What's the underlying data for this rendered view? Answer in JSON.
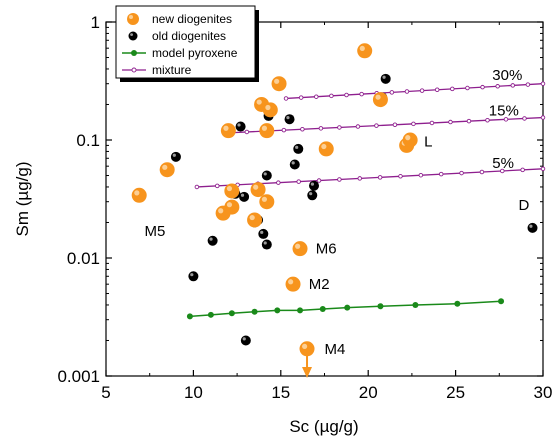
{
  "chart_data": {
    "type": "scatter",
    "title": "",
    "xlabel": "Sc (µg/g)",
    "ylabel": "Sm (µg/g)",
    "xlim": [
      5,
      30
    ],
    "ylim": [
      0.001,
      1
    ],
    "yscale": "log",
    "grid": false,
    "legend_position": "top-left",
    "x_ticks": [
      5,
      10,
      15,
      20,
      25,
      30
    ],
    "x_tick_labels": [
      "5",
      "10",
      "15",
      "20",
      "25",
      "30"
    ],
    "y_ticks": [
      0.001,
      0.01,
      0.1,
      1
    ],
    "y_tick_labels": [
      "0.001",
      "0.01",
      "0.1",
      "1"
    ],
    "colors": {
      "new": "#f7941d",
      "old": "#000000",
      "model": "#1a8a1a",
      "mixture": "#8e1f8e"
    },
    "series": [
      {
        "name": "new diogenites",
        "marker": "circle-orange",
        "points": [
          [
            6.9,
            0.034
          ],
          [
            8.5,
            0.056
          ],
          [
            11.7,
            0.024
          ],
          [
            12.0,
            0.12
          ],
          [
            12.2,
            0.027
          ],
          [
            12.2,
            0.037
          ],
          [
            13.5,
            0.021
          ],
          [
            13.7,
            0.038
          ],
          [
            13.9,
            0.2
          ],
          [
            14.2,
            0.03
          ],
          [
            14.2,
            0.12
          ],
          [
            14.4,
            0.18
          ],
          [
            14.9,
            0.3
          ],
          [
            16.1,
            0.012
          ],
          [
            17.6,
            0.084
          ],
          [
            19.8,
            0.57
          ],
          [
            20.7,
            0.22
          ],
          [
            22.2,
            0.09
          ],
          [
            22.4,
            0.1
          ],
          [
            15.7,
            0.006
          ],
          [
            16.5,
            0.0017
          ]
        ]
      },
      {
        "name": "old diogenites",
        "marker": "circle-black",
        "points": [
          [
            9.0,
            0.072
          ],
          [
            10.0,
            0.007
          ],
          [
            11.1,
            0.014
          ],
          [
            12.4,
            0.035
          ],
          [
            12.7,
            0.13
          ],
          [
            12.9,
            0.033
          ],
          [
            13.0,
            0.002
          ],
          [
            13.5,
            0.02
          ],
          [
            13.7,
            0.021
          ],
          [
            14.0,
            0.016
          ],
          [
            14.2,
            0.013
          ],
          [
            14.2,
            0.05
          ],
          [
            14.3,
            0.16
          ],
          [
            15.5,
            0.15
          ],
          [
            15.8,
            0.062
          ],
          [
            16.0,
            0.084
          ],
          [
            16.8,
            0.034
          ],
          [
            16.9,
            0.041
          ],
          [
            20.8,
            0.23
          ],
          [
            21.0,
            0.33
          ],
          [
            29.4,
            0.018
          ]
        ]
      },
      {
        "name": "model pyroxene",
        "marker": "line-green-dots",
        "points": [
          [
            9.8,
            0.0032
          ],
          [
            11.0,
            0.0033
          ],
          [
            12.2,
            0.0034
          ],
          [
            13.5,
            0.0035
          ],
          [
            14.8,
            0.0036
          ],
          [
            16.1,
            0.0036
          ],
          [
            17.4,
            0.0037
          ],
          [
            18.8,
            0.0038
          ],
          [
            20.7,
            0.0039
          ],
          [
            22.7,
            0.004
          ],
          [
            25.1,
            0.0041
          ],
          [
            27.6,
            0.0043
          ]
        ]
      },
      {
        "name": "mixture",
        "marker": "line-purple-open",
        "lines": [
          {
            "label": "5%",
            "points": [
              [
                10.2,
                0.04
              ],
              [
                30.0,
                0.057
              ]
            ]
          },
          {
            "label": "15%",
            "points": [
              [
                12.0,
                0.115
              ],
              [
                30.0,
                0.155
              ]
            ]
          },
          {
            "label": "30%",
            "points": [
              [
                15.3,
                0.225
              ],
              [
                30.0,
                0.3
              ]
            ]
          }
        ]
      }
    ],
    "annotations": [
      {
        "text": "M5",
        "x": 7.2,
        "y": 0.017
      },
      {
        "text": "M6",
        "x": 17.0,
        "y": 0.012
      },
      {
        "text": "M2",
        "x": 16.6,
        "y": 0.006
      },
      {
        "text": "M4",
        "x": 17.5,
        "y": 0.0017
      },
      {
        "text": "L",
        "x": 23.2,
        "y": 0.097
      },
      {
        "text": "D",
        "x": 28.6,
        "y": 0.028
      },
      {
        "text": "30%",
        "x": 27.1,
        "y": 0.355
      },
      {
        "text": "15%",
        "x": 26.9,
        "y": 0.178
      },
      {
        "text": "5%",
        "x": 27.1,
        "y": 0.064
      }
    ],
    "arrow": {
      "x": 16.5,
      "from": 0.0017,
      "to": 0.001,
      "color": "#f7941d"
    }
  }
}
